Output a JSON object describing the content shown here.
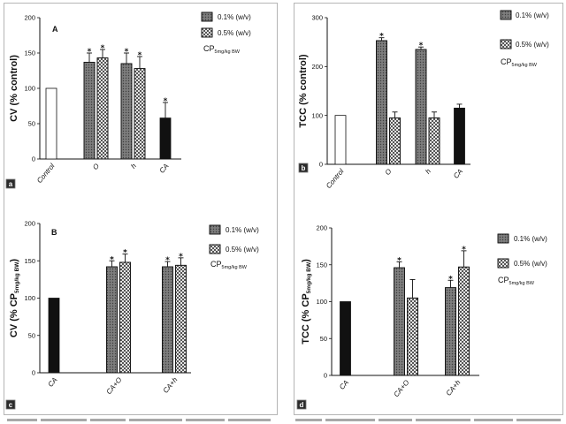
{
  "chart_data": [
    {
      "type": "bar",
      "panel_tag": "a",
      "panel_letter": "A",
      "ylabel_parts": [
        "CV (% control)",
        "",
        ""
      ],
      "ylim": [
        0,
        200
      ],
      "yticks": [
        0,
        50,
        100,
        150,
        200
      ],
      "grid": false,
      "categories": [
        "Control",
        "O",
        "h",
        "CA"
      ],
      "series": [
        {
          "name": "0.1% (w/v)",
          "fill": "#7d7d7d",
          "dot_color": "#3d3d3d",
          "values": [
            null,
            137,
            135,
            null
          ],
          "errors": [
            null,
            13,
            15,
            null
          ],
          "significant": [
            false,
            true,
            true,
            false
          ]
        },
        {
          "name": "0.5% (w/v)",
          "fill": "#e4e4e4",
          "check_color": "#555555",
          "values": [
            null,
            143,
            128,
            null
          ],
          "errors": [
            null,
            12,
            17,
            null
          ],
          "significant": [
            false,
            true,
            true,
            false
          ]
        },
        {
          "name": "",
          "fill": "#ffffff",
          "values": [
            100,
            null,
            null,
            null
          ],
          "errors": [
            0,
            null,
            null,
            null
          ],
          "significant": [
            false,
            false,
            false,
            false
          ]
        },
        {
          "name": "",
          "fill": "#111111",
          "values": [
            null,
            null,
            null,
            58
          ],
          "errors": [
            null,
            null,
            null,
            22
          ],
          "significant": [
            false,
            false,
            false,
            true
          ]
        }
      ],
      "legend": {
        "placement": "top-right",
        "note": "CP",
        "note_sub": "5mg/kg BW"
      },
      "significance_mark": "*"
    },
    {
      "type": "bar",
      "panel_tag": "b",
      "ylabel_parts": [
        "TCC (% control)",
        "",
        ""
      ],
      "ylim": [
        0,
        300
      ],
      "yticks": [
        0,
        100,
        200,
        300
      ],
      "grid": false,
      "categories": [
        "Control",
        "O",
        "h",
        "CA"
      ],
      "series": [
        {
          "name": "0.1% (w/v)",
          "fill": "#7d7d7d",
          "dot_color": "#3d3d3d",
          "values": [
            null,
            253,
            235,
            null
          ],
          "errors": [
            null,
            6,
            5,
            null
          ],
          "significant": [
            false,
            true,
            true,
            false
          ]
        },
        {
          "name": "0.5% (w/v)",
          "fill": "#e4e4e4",
          "check_color": "#555555",
          "values": [
            null,
            95,
            95,
            null
          ],
          "errors": [
            null,
            12,
            12,
            null
          ],
          "significant": [
            false,
            false,
            false,
            false
          ]
        },
        {
          "name": "",
          "fill": "#ffffff",
          "values": [
            100,
            null,
            null,
            null
          ],
          "errors": [
            0,
            null,
            null,
            null
          ],
          "significant": [
            false,
            false,
            false,
            false
          ]
        },
        {
          "name": "",
          "fill": "#111111",
          "values": [
            null,
            null,
            null,
            115
          ],
          "errors": [
            null,
            null,
            null,
            8
          ],
          "significant": [
            false,
            false,
            false,
            false
          ]
        }
      ],
      "legend": {
        "placement": "top-right",
        "note": "CP",
        "note_sub": "5mg/kg BW"
      },
      "significance_mark": "*"
    },
    {
      "type": "bar",
      "panel_tag": "c",
      "panel_letter": "B",
      "ylabel_parts": [
        "CV (% CP",
        "5mg/kg BW",
        ")"
      ],
      "ylim": [
        0,
        200
      ],
      "yticks": [
        0,
        50,
        100,
        150,
        200
      ],
      "grid": false,
      "categories": [
        "CA",
        "CA+O",
        "CA+h"
      ],
      "series": [
        {
          "name": "0.1% (w/v)",
          "fill": "#7d7d7d",
          "dot_color": "#3d3d3d",
          "values": [
            null,
            142,
            142
          ],
          "errors": [
            null,
            8,
            7
          ],
          "significant": [
            false,
            true,
            true
          ]
        },
        {
          "name": "0.5% (w/v)",
          "fill": "#e4e4e4",
          "check_color": "#555555",
          "values": [
            null,
            148,
            144
          ],
          "errors": [
            null,
            11,
            10
          ],
          "significant": [
            false,
            true,
            true
          ]
        },
        {
          "name": "",
          "fill": "#111111",
          "values": [
            100,
            null,
            null
          ],
          "errors": [
            0,
            null,
            null
          ],
          "significant": [
            false,
            false,
            false
          ]
        }
      ],
      "legend": {
        "placement": "top-right",
        "note": "CP",
        "note_sub": "5mg/kg BW"
      },
      "significance_mark": "*"
    },
    {
      "type": "bar",
      "panel_tag": "d",
      "ylabel_parts": [
        "TCC (% CP",
        "5mg/kg BW",
        ")"
      ],
      "ylim": [
        0,
        200
      ],
      "yticks": [
        0,
        50,
        100,
        150,
        200
      ],
      "grid": false,
      "categories": [
        "CA",
        "CA+O",
        "CA+h"
      ],
      "series": [
        {
          "name": "0.1% (w/v)",
          "fill": "#7d7d7d",
          "dot_color": "#3d3d3d",
          "values": [
            null,
            146,
            119
          ],
          "errors": [
            null,
            8,
            10
          ],
          "significant": [
            false,
            true,
            true
          ]
        },
        {
          "name": "0.5% (w/v)",
          "fill": "#e4e4e4",
          "check_color": "#555555",
          "values": [
            null,
            105,
            147
          ],
          "errors": [
            null,
            25,
            22
          ],
          "significant": [
            false,
            false,
            true
          ]
        },
        {
          "name": "",
          "fill": "#111111",
          "values": [
            100,
            null,
            null
          ],
          "errors": [
            0,
            null,
            null
          ],
          "significant": [
            false,
            false,
            false
          ]
        }
      ],
      "legend": {
        "placement": "top-right",
        "note": "CP",
        "note_sub": "5mg/kg BW"
      },
      "significance_mark": "*"
    }
  ]
}
